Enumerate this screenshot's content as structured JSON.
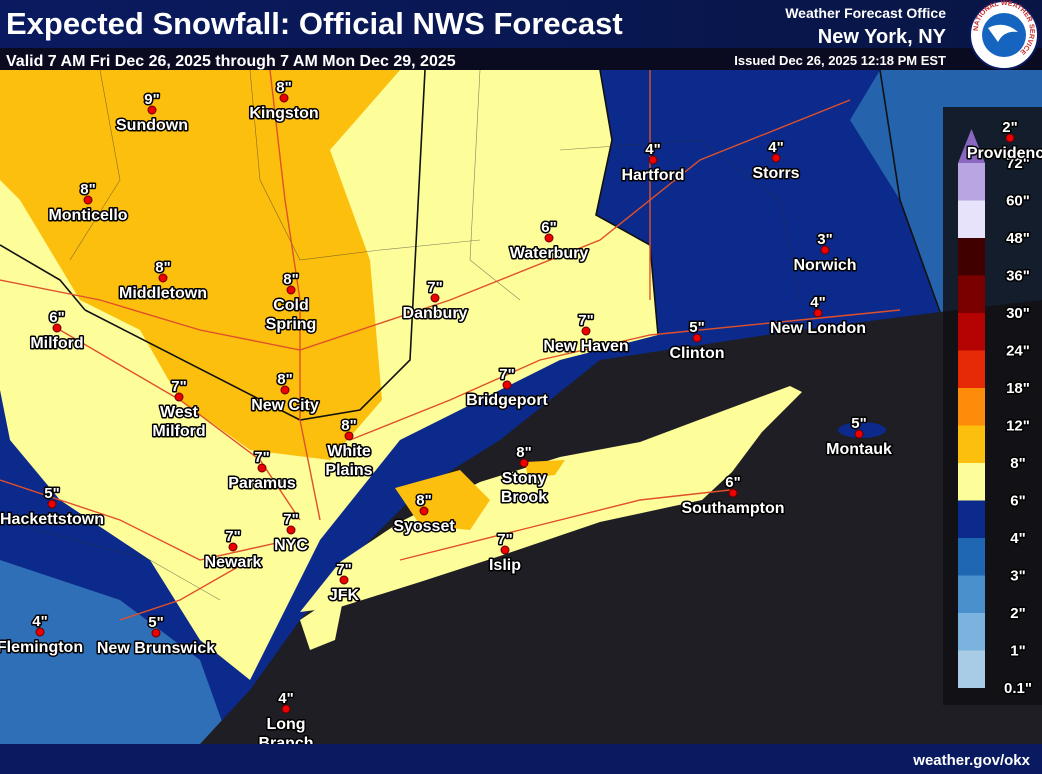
{
  "header": {
    "title": "Expected Snowfall: Official NWS Forecast",
    "valid": "Valid 7 AM Fri Dec 26, 2025 through 7 AM Mon Dec 29, 2025",
    "office": "Weather Forecast Office",
    "location": "New York, NY",
    "issued": "Issued Dec 26, 2025 12:18 PM EST",
    "logo_text": "NATIONAL WEATHER SERVICE"
  },
  "legend": {
    "items": [
      {
        "label": "0.1\"",
        "color": "#a9cce6"
      },
      {
        "label": "1\"",
        "color": "#7ab3dd"
      },
      {
        "label": "2\"",
        "color": "#4a90cc"
      },
      {
        "label": "3\"",
        "color": "#1f67b2"
      },
      {
        "label": "4\"",
        "color": "#0b2a8c"
      },
      {
        "label": "6\"",
        "color": "#fdfd9a"
      },
      {
        "label": "8\"",
        "color": "#fdbf0d"
      },
      {
        "label": "12\"",
        "color": "#fd8c0a"
      },
      {
        "label": "18\"",
        "color": "#e62a06"
      },
      {
        "label": "24\"",
        "color": "#b50303"
      },
      {
        "label": "30\"",
        "color": "#7a0000"
      },
      {
        "label": "36\"",
        "color": "#400000"
      },
      {
        "label": "48\"",
        "color": "#e6e3fb"
      },
      {
        "label": "60\"",
        "color": "#b8a6e2"
      },
      {
        "label": "72\"",
        "color": "#8b68bf"
      }
    ]
  },
  "cities": [
    {
      "name": [
        "Sundown"
      ],
      "amount": "9\""
    },
    {
      "name": [
        "Kingston"
      ],
      "amount": "8\""
    },
    {
      "name": [
        "Monticello"
      ],
      "amount": "8\""
    },
    {
      "name": [
        "Middletown"
      ],
      "amount": "8\""
    },
    {
      "name": [
        "Cold",
        "Spring"
      ],
      "amount": "8\""
    },
    {
      "name": [
        "Milford"
      ],
      "amount": "6\""
    },
    {
      "name": [
        "Danbury"
      ],
      "amount": "7\""
    },
    {
      "name": [
        "Waterbury"
      ],
      "amount": "6\""
    },
    {
      "name": [
        "Hartford"
      ],
      "amount": "4\""
    },
    {
      "name": [
        "Storrs"
      ],
      "amount": "4\""
    },
    {
      "name": [
        "Norwich"
      ],
      "amount": "3\""
    },
    {
      "name": [
        "New London"
      ],
      "amount": "4\""
    },
    {
      "name": [
        "Clinton"
      ],
      "amount": "5\""
    },
    {
      "name": [
        "New Haven"
      ],
      "amount": "7\""
    },
    {
      "name": [
        "Bridgeport"
      ],
      "amount": "7\""
    },
    {
      "name": [
        "West",
        "Milford"
      ],
      "amount": "7\""
    },
    {
      "name": [
        "New City"
      ],
      "amount": "8\""
    },
    {
      "name": [
        "White",
        "Plains"
      ],
      "amount": "8\""
    },
    {
      "name": [
        "Paramus"
      ],
      "amount": "7\""
    },
    {
      "name": [
        "Hackettstown"
      ],
      "amount": "5\""
    },
    {
      "name": [
        "NYC"
      ],
      "amount": "7\""
    },
    {
      "name": [
        "Newark"
      ],
      "amount": "7\""
    },
    {
      "name": [
        "JFK"
      ],
      "amount": "7\""
    },
    {
      "name": [
        "Syosset"
      ],
      "amount": "8\""
    },
    {
      "name": [
        "Stony",
        "Brook"
      ],
      "amount": "8\""
    },
    {
      "name": [
        "Islip"
      ],
      "amount": "7\""
    },
    {
      "name": [
        "Southampton"
      ],
      "amount": "6\""
    },
    {
      "name": [
        "Montauk"
      ],
      "amount": "5\""
    },
    {
      "name": [
        "Flemington"
      ],
      "amount": "4\""
    },
    {
      "name": [
        "New Brunswick"
      ],
      "amount": "5\""
    },
    {
      "name": [
        "Long",
        "Branch"
      ],
      "amount": "4\""
    },
    {
      "name": [
        "Providence"
      ],
      "amount": "2\""
    }
  ],
  "footer": "weather.gov/okx"
}
